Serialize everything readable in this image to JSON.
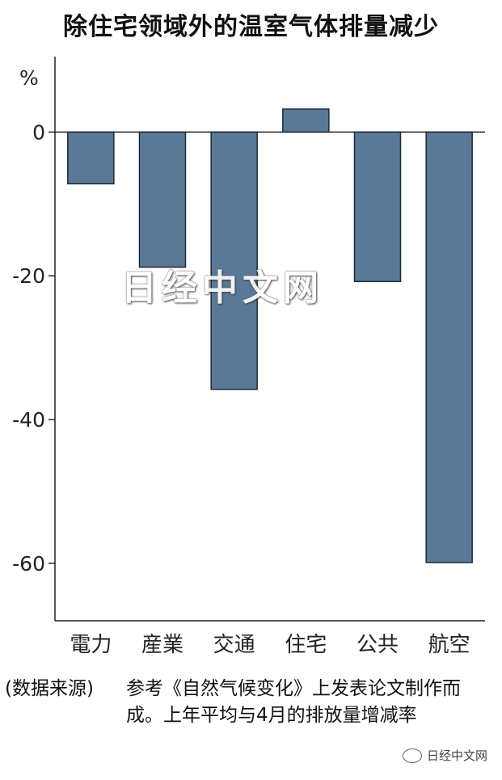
{
  "title": "除住宅领域外的温室气体排量减少",
  "chart_data": {
    "type": "bar",
    "categories": [
      "電力",
      "産業",
      "交通",
      "住宅",
      "公共",
      "航空"
    ],
    "values": [
      -7.2,
      -18.8,
      -35.8,
      3.2,
      -20.8,
      -59.9
    ],
    "ylabel": "%",
    "ylim": [
      -68,
      10.5
    ],
    "yticks": [
      0,
      -20,
      -40,
      -60
    ],
    "bar_color": "#5b7896",
    "grid": false
  },
  "note": {
    "source_label": "(数据来源)",
    "text": "参考《自然气候变化》上发表论文制作而成。上年平均与4月的排放量增减率"
  },
  "watermark": "日经中文网",
  "footer_logo": "日经中文网"
}
